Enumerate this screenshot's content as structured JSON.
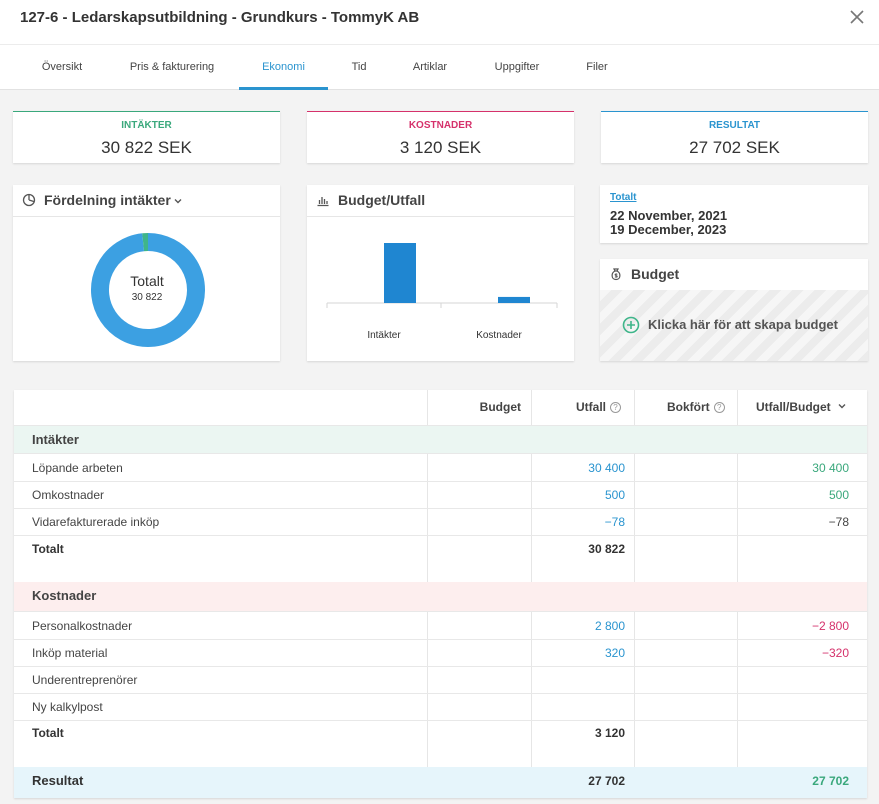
{
  "header": {
    "title": "127-6 - Ledarskapsutbildning - Grundkurs - TommyK AB"
  },
  "tabs": [
    "Översikt",
    "Pris & fakturering",
    "Ekonomi",
    "Tid",
    "Artiklar",
    "Uppgifter",
    "Filer"
  ],
  "active_tab": "Ekonomi",
  "kpis": {
    "income": {
      "label": "INTÄKTER",
      "value": "30 822 SEK",
      "color": "#3aa87c"
    },
    "costs": {
      "label": "KOSTNADER",
      "value": "3 120 SEK",
      "color": "#d5316b"
    },
    "result": {
      "label": "RESULTAT",
      "value": "27 702 SEK",
      "color": "#2a94cf"
    }
  },
  "distribution": {
    "title": "Fördelning intäkter",
    "center_label": "Totalt",
    "center_value": "30 822",
    "slices": [
      {
        "value": 30322,
        "color": "#3ca0e2"
      },
      {
        "value": 500,
        "color": "#3fb58a"
      }
    ]
  },
  "budget_chart": {
    "title": "Budget/Utfall",
    "categories": [
      "Intäkter",
      "Kostnader"
    ],
    "values": [
      30822,
      3120
    ],
    "bar_color": "#1f86d1"
  },
  "period": {
    "link": "Totalt",
    "start": "22 November, 2021",
    "end": "19 December, 2023"
  },
  "budget_panel": {
    "title": "Budget",
    "cta": "Klicka här för att skapa budget"
  },
  "table": {
    "headers": {
      "budget": "Budget",
      "utfall": "Utfall",
      "bokfort": "Bokfört",
      "utfall_budget": "Utfall/Budget"
    },
    "income_section": {
      "title": "Intäkter"
    },
    "income_rows": [
      {
        "label": "Löpande arbeten",
        "utfall": "30 400",
        "utfall_budget": "30 400"
      },
      {
        "label": "Omkostnader",
        "utfall": "500",
        "utfall_budget": "500"
      },
      {
        "label": "Vidarefakturerade inköp",
        "utfall": "−78",
        "utfall_budget": "−78"
      }
    ],
    "income_total": {
      "label": "Totalt",
      "utfall": "30 822"
    },
    "cost_section": {
      "title": "Kostnader"
    },
    "cost_rows": [
      {
        "label": "Personalkostnader",
        "utfall": "2 800",
        "utfall_budget": "−2 800"
      },
      {
        "label": "Inköp material",
        "utfall": "320",
        "utfall_budget": "−320"
      },
      {
        "label": "Underentreprenörer",
        "utfall": "",
        "utfall_budget": ""
      },
      {
        "label": "Ny kalkylpost",
        "utfall": "",
        "utfall_budget": ""
      }
    ],
    "cost_total": {
      "label": "Totalt",
      "utfall": "3 120"
    },
    "result": {
      "label": "Resultat",
      "utfall": "27 702",
      "utfall_budget": "27 702"
    }
  }
}
